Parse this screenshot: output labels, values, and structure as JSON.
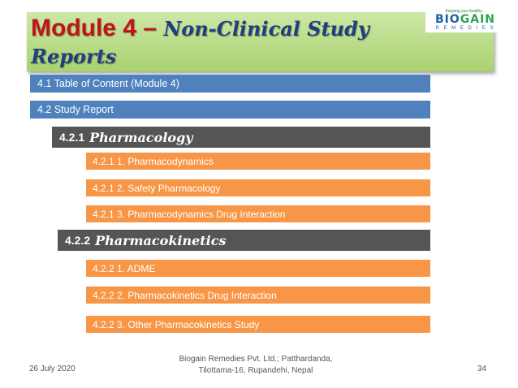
{
  "title": {
    "prefix": "Module 4 – ",
    "italic": "Non-Clinical Study Reports"
  },
  "logo": {
    "tagline": "Keeping you healthy...",
    "name_a": "BIO",
    "name_b": "GAIN",
    "sub": "R E M E D I E S"
  },
  "toc": {
    "item_41": "4.1  Table  of  Content (Module 4)",
    "item_42": "4.2  Study  Report",
    "pharmacology": {
      "num": "4.2.1",
      "label": "Pharmacology"
    },
    "pharmacology_items": [
      "4.2.1  1.  Pharmacodynamics",
      "4.2.1   2.  Safety  Pharmacology",
      "4.2.1   3.  Pharmacodynamics  Drug  Interaction"
    ],
    "pharmacokinetics": {
      "num": "4.2.2",
      "label": "Pharmacokinetics"
    },
    "pharmacokinetics_items": [
      "4.2.2  1.  ADME",
      "4.2.2   2.  Pharmacokinetics  Drug  Interaction",
      "4.2.2   3.  Other  Pharmacokinetics  Study"
    ]
  },
  "footer": {
    "date": "26 July 2020",
    "org_line1": "Biogain Remedies Pvt. Ltd.; Patthardanda,",
    "org_line2": "Tilottama-16, Rupandehi, Nepal",
    "page": "34"
  }
}
